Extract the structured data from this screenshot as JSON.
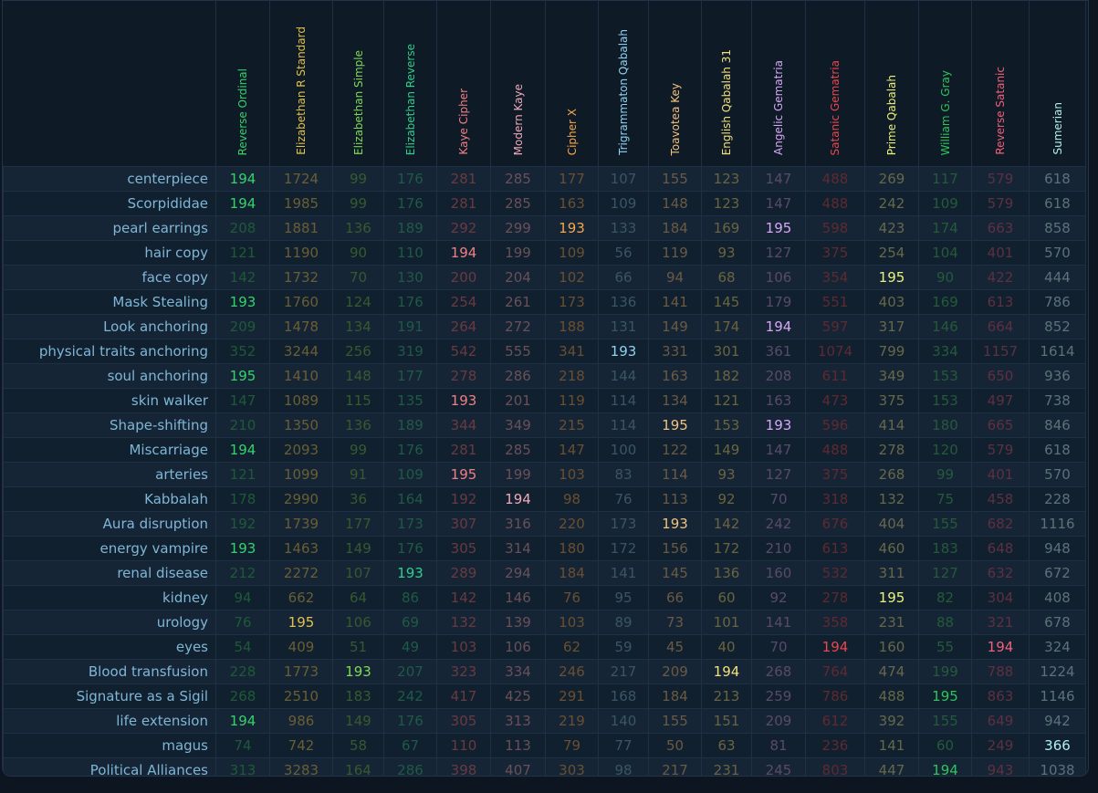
{
  "ciphers": [
    {
      "name": "Reverse Ordinal",
      "color": "#34d36a",
      "dim": "#1f5a37"
    },
    {
      "name": "Elizabethan R Standard",
      "color": "#e0c14a",
      "dim": "#6a5e34"
    },
    {
      "name": "Elizabethan Simple",
      "color": "#7ed957",
      "dim": "#365a2e"
    },
    {
      "name": "Elizabethan Reverse",
      "color": "#2fcf8a",
      "dim": "#1f5a46"
    },
    {
      "name": "Kaye Cipher",
      "color": "#f07f84",
      "dim": "#6a3a40"
    },
    {
      "name": "Modern Kaye",
      "color": "#f0a9b8",
      "dim": "#6a5058"
    },
    {
      "name": "Cipher X",
      "color": "#f4a64a",
      "dim": "#6a4f30"
    },
    {
      "name": "Trigrammaton Qabalah",
      "color": "#8fd3f0",
      "dim": "#3a5566"
    },
    {
      "name": "Toavotea Key",
      "color": "#f1c27d",
      "dim": "#6a5a44"
    },
    {
      "name": "English Qabalah 31",
      "color": "#f1e17a",
      "dim": "#6a6440"
    },
    {
      "name": "Angelic Gematria",
      "color": "#d6a7f4",
      "dim": "#5a4a6a"
    },
    {
      "name": "Satanic Gematria",
      "color": "#e8474d",
      "dim": "#5e2a30"
    },
    {
      "name": "Prime Qabalah",
      "color": "#e9f27c",
      "dim": "#66684a"
    },
    {
      "name": "William G. Gray",
      "color": "#2ec45a",
      "dim": "#255a3a"
    },
    {
      "name": "Reverse Satanic",
      "color": "#f0607a",
      "dim": "#5e3040"
    },
    {
      "name": "Sumerian",
      "color": "#b2eef0",
      "dim": "#5a7278"
    }
  ],
  "rows": [
    {
      "word": "centerpiece",
      "values": [
        194,
        1724,
        99,
        176,
        281,
        285,
        177,
        107,
        155,
        123,
        147,
        488,
        269,
        117,
        579,
        618
      ],
      "hl": [
        0
      ]
    },
    {
      "word": "Scorpididae",
      "values": [
        194,
        1985,
        99,
        176,
        281,
        285,
        163,
        109,
        148,
        123,
        147,
        488,
        242,
        109,
        579,
        618
      ],
      "hl": [
        0
      ]
    },
    {
      "word": "pearl earrings",
      "values": [
        208,
        1881,
        136,
        189,
        292,
        299,
        193,
        133,
        184,
        169,
        195,
        598,
        423,
        174,
        663,
        858
      ],
      "hl": [
        6,
        10
      ]
    },
    {
      "word": "hair copy",
      "values": [
        121,
        1190,
        90,
        110,
        194,
        199,
        109,
        56,
        119,
        93,
        127,
        375,
        254,
        104,
        401,
        570
      ],
      "hl": [
        4
      ]
    },
    {
      "word": "face copy",
      "values": [
        142,
        1732,
        70,
        130,
        200,
        204,
        102,
        66,
        94,
        68,
        106,
        354,
        195,
        90,
        422,
        444
      ],
      "hl": [
        12
      ]
    },
    {
      "word": "Mask Stealing",
      "values": [
        193,
        1760,
        124,
        176,
        254,
        261,
        173,
        136,
        141,
        145,
        179,
        551,
        403,
        169,
        613,
        786
      ],
      "hl": [
        0
      ]
    },
    {
      "word": "Look anchoring",
      "values": [
        209,
        1478,
        134,
        191,
        264,
        272,
        188,
        131,
        149,
        174,
        194,
        597,
        317,
        146,
        664,
        852
      ],
      "hl": [
        10
      ]
    },
    {
      "word": "physical traits anchoring",
      "values": [
        352,
        3244,
        256,
        319,
        542,
        555,
        341,
        193,
        331,
        301,
        361,
        1074,
        799,
        334,
        1157,
        1614
      ],
      "hl": [
        7
      ]
    },
    {
      "word": "soul anchoring",
      "values": [
        195,
        1410,
        148,
        177,
        278,
        286,
        218,
        144,
        163,
        182,
        208,
        611,
        349,
        153,
        650,
        936
      ],
      "hl": [
        0
      ]
    },
    {
      "word": "skin walker",
      "values": [
        147,
        1089,
        115,
        135,
        193,
        201,
        119,
        114,
        134,
        121,
        163,
        473,
        375,
        153,
        497,
        738
      ],
      "hl": [
        4
      ]
    },
    {
      "word": "Shape-shifting",
      "values": [
        210,
        1350,
        136,
        189,
        344,
        349,
        215,
        114,
        195,
        153,
        193,
        596,
        414,
        180,
        665,
        846
      ],
      "hl": [
        8,
        10
      ]
    },
    {
      "word": "Miscarriage",
      "values": [
        194,
        2093,
        99,
        176,
        281,
        285,
        147,
        100,
        122,
        149,
        147,
        488,
        278,
        120,
        579,
        618
      ],
      "hl": [
        0
      ]
    },
    {
      "word": "arteries",
      "values": [
        121,
        1099,
        91,
        109,
        195,
        199,
        103,
        83,
        114,
        93,
        127,
        375,
        268,
        99,
        401,
        570
      ],
      "hl": [
        4
      ]
    },
    {
      "word": "Kabbalah",
      "values": [
        178,
        2990,
        36,
        164,
        192,
        194,
        98,
        76,
        113,
        92,
        70,
        318,
        132,
        75,
        458,
        228
      ],
      "hl": [
        5
      ]
    },
    {
      "word": "Aura disruption",
      "values": [
        192,
        1739,
        177,
        173,
        307,
        316,
        220,
        173,
        193,
        142,
        242,
        676,
        404,
        155,
        682,
        1116
      ],
      "hl": [
        8
      ]
    },
    {
      "word": "energy vampire",
      "values": [
        193,
        1463,
        149,
        176,
        305,
        314,
        180,
        172,
        156,
        172,
        210,
        613,
        460,
        183,
        648,
        948
      ],
      "hl": [
        0
      ]
    },
    {
      "word": "renal disease",
      "values": [
        212,
        2272,
        107,
        193,
        289,
        294,
        184,
        141,
        145,
        136,
        160,
        532,
        311,
        127,
        632,
        672
      ],
      "hl": [
        3
      ]
    },
    {
      "word": "kidney",
      "values": [
        94,
        662,
        64,
        86,
        142,
        146,
        76,
        95,
        66,
        60,
        92,
        278,
        195,
        82,
        304,
        408
      ],
      "hl": [
        12
      ]
    },
    {
      "word": "urology",
      "values": [
        76,
        195,
        106,
        69,
        132,
        139,
        103,
        89,
        73,
        101,
        141,
        358,
        231,
        88,
        321,
        678
      ],
      "hl": [
        1
      ]
    },
    {
      "word": "eyes",
      "values": [
        54,
        409,
        51,
        49,
        103,
        106,
        62,
        59,
        45,
        40,
        70,
        194,
        160,
        55,
        194,
        324
      ],
      "hl": [
        11,
        14
      ]
    },
    {
      "word": "Blood transfusion",
      "values": [
        228,
        1773,
        193,
        207,
        323,
        334,
        246,
        217,
        209,
        194,
        268,
        764,
        474,
        199,
        788,
        1224
      ],
      "hl": [
        2,
        9
      ]
    },
    {
      "word": "Signature as a Sigil",
      "values": [
        268,
        2510,
        183,
        242,
        417,
        425,
        291,
        168,
        184,
        213,
        259,
        786,
        488,
        195,
        863,
        1146
      ],
      "hl": [
        13
      ]
    },
    {
      "word": "life extension",
      "values": [
        194,
        986,
        149,
        176,
        305,
        313,
        219,
        140,
        155,
        151,
        209,
        612,
        392,
        155,
        649,
        942
      ],
      "hl": [
        0
      ]
    },
    {
      "word": "magus",
      "values": [
        74,
        742,
        58,
        67,
        110,
        113,
        79,
        77,
        50,
        63,
        81,
        236,
        141,
        60,
        249,
        366
      ],
      "hl": [
        15
      ]
    },
    {
      "word": "Political Alliances",
      "values": [
        313,
        3283,
        164,
        286,
        398,
        407,
        303,
        98,
        217,
        231,
        245,
        803,
        447,
        194,
        943,
        1038
      ],
      "hl": [
        13
      ]
    }
  ]
}
